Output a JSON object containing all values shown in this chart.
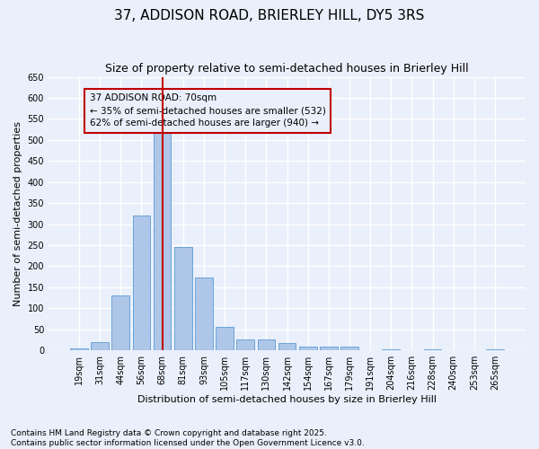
{
  "title1": "37, ADDISON ROAD, BRIERLEY HILL, DY5 3RS",
  "title2": "Size of property relative to semi-detached houses in Brierley Hill",
  "xlabel": "Distribution of semi-detached houses by size in Brierley Hill",
  "ylabel": "Number of semi-detached properties",
  "categories": [
    "19sqm",
    "31sqm",
    "44sqm",
    "56sqm",
    "68sqm",
    "81sqm",
    "93sqm",
    "105sqm",
    "117sqm",
    "130sqm",
    "142sqm",
    "154sqm",
    "167sqm",
    "179sqm",
    "191sqm",
    "204sqm",
    "216sqm",
    "228sqm",
    "240sqm",
    "253sqm",
    "265sqm"
  ],
  "values": [
    5,
    20,
    130,
    320,
    535,
    245,
    173,
    55,
    27,
    27,
    18,
    8,
    8,
    8,
    0,
    3,
    0,
    2,
    0,
    0,
    2
  ],
  "bar_color": "#aec6e8",
  "bar_edge_color": "#5b9bd5",
  "highlight_index": 4,
  "highlight_color": "#c00000",
  "annotation_title": "37 ADDISON ROAD: 70sqm",
  "annotation_line1": "← 35% of semi-detached houses are smaller (532)",
  "annotation_line2": "62% of semi-detached houses are larger (940) →",
  "footnote1": "Contains HM Land Registry data © Crown copyright and database right 2025.",
  "footnote2": "Contains public sector information licensed under the Open Government Licence v3.0.",
  "ylim": [
    0,
    650
  ],
  "yticks": [
    0,
    50,
    100,
    150,
    200,
    250,
    300,
    350,
    400,
    450,
    500,
    550,
    600,
    650
  ],
  "bg_color": "#eaf0fb",
  "grid_color": "#ffffff",
  "title_fontsize": 11,
  "subtitle_fontsize": 9,
  "axis_label_fontsize": 8,
  "tick_fontsize": 7,
  "annotation_fontsize": 7.5,
  "footnote_fontsize": 6.5
}
